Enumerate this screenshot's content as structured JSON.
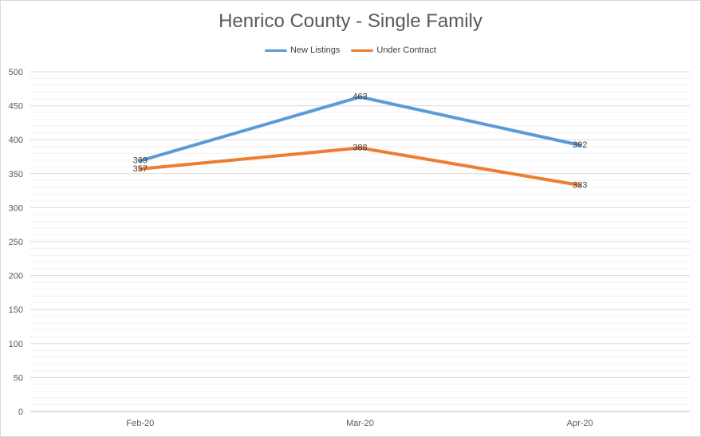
{
  "chart_data": {
    "type": "line",
    "title": "Henrico County - Single Family",
    "categories": [
      "Feb-20",
      "Mar-20",
      "Apr-20"
    ],
    "series": [
      {
        "name": "New Listings",
        "values": [
          369,
          463,
          392
        ],
        "color": "#5b9bd5"
      },
      {
        "name": "Under Contract",
        "values": [
          357,
          388,
          333
        ],
        "color": "#ed7d31"
      }
    ],
    "ylim": [
      0,
      500
    ],
    "yticks": [
      0,
      50,
      100,
      150,
      200,
      250,
      300,
      350,
      400,
      450,
      500
    ],
    "grid": true,
    "legend_position": "top"
  }
}
